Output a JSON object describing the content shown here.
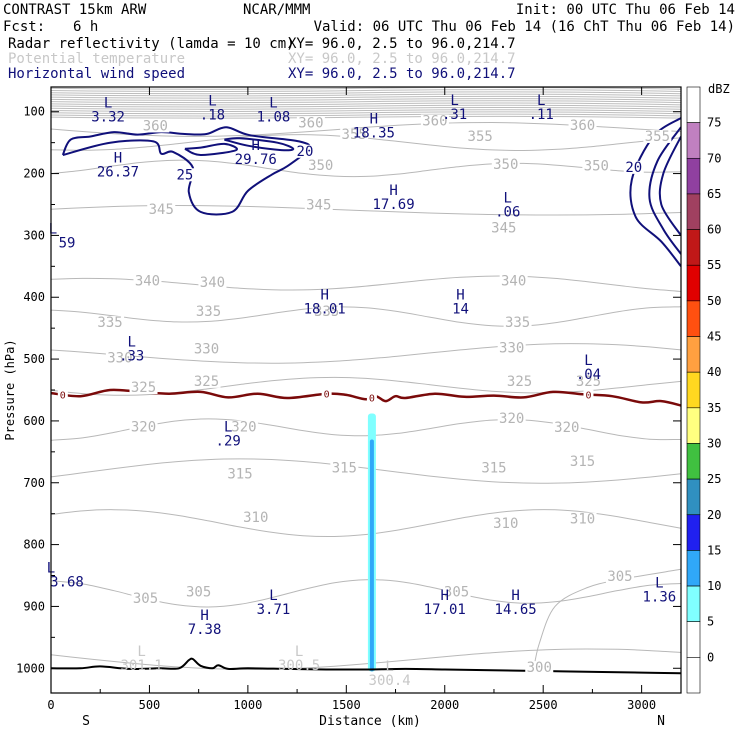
{
  "header": {
    "model": "CONTRAST 15km ARW",
    "org": "NCAR/MMM",
    "init": "Init: 00 UTC Thu 06 Feb 14",
    "fcst_label": "Fcst:",
    "fcst_value": "6 h",
    "valid": "Valid: 06 UTC Thu 06 Feb 14 (16 ChT Thu 06 Feb 14)"
  },
  "fields": [
    {
      "name": "Radar reflectivity (lamda = 10 cm)",
      "xy": "XY=  96.0,  2.5 to  96.0,214.7",
      "color": "#000000"
    },
    {
      "name": "Potential temperature",
      "xy": "XY=  96.0,  2.5 to  96.0,214.7",
      "color": "#c8c8c8"
    },
    {
      "name": "Horizontal wind speed",
      "xy": "XY=  96.0,  2.5 to  96.0,214.7",
      "color": "#10107a"
    }
  ],
  "colorbar": {
    "unit": "dBZ",
    "levels": [
      "75",
      "70",
      "65",
      "60",
      "55",
      "50",
      "45",
      "40",
      "35",
      "30",
      "25",
      "20",
      "15",
      "10",
      "5",
      "0"
    ],
    "colors": [
      "#ffffff",
      "#c080c0",
      "#9040a0",
      "#a04060",
      "#c01818",
      "#e00000",
      "#ff5010",
      "#ffa040",
      "#ffd820",
      "#ffff80",
      "#40c040",
      "#3090c0",
      "#2020f0",
      "#30a8f8",
      "#80ffff",
      "#ffffff",
      "#ffffff"
    ]
  },
  "chart_data": {
    "type": "cross-section",
    "xlabel": "Distance (km)",
    "ylabel": "Pressure (hPa)",
    "xlim": [
      0,
      3200
    ],
    "ylim": [
      1040,
      60
    ],
    "x_ticks": [
      "0",
      "500",
      "1000",
      "1500",
      "2000",
      "2500",
      "3000"
    ],
    "x_tick_values": [
      0,
      500,
      1000,
      1500,
      2000,
      2500,
      3000
    ],
    "y_ticks": [
      "100",
      "200",
      "300",
      "400",
      "500",
      "600",
      "700",
      "800",
      "900",
      "1000"
    ],
    "y_tick_values": [
      100,
      200,
      300,
      400,
      500,
      600,
      700,
      800,
      900,
      1000
    ],
    "direction_start": "S",
    "direction_end": "N",
    "theta_labels": [
      {
        "text": "360",
        "x": 530,
        "p": 127
      },
      {
        "text": "360",
        "x": 1320,
        "p": 122
      },
      {
        "text": "360",
        "x": 1950,
        "p": 119
      },
      {
        "text": "360",
        "x": 2700,
        "p": 126
      },
      {
        "text": "355",
        "x": 1540,
        "p": 141
      },
      {
        "text": "355",
        "x": 2180,
        "p": 144
      },
      {
        "text": "355",
        "x": 3080,
        "p": 144
      },
      {
        "text": "350",
        "x": 1370,
        "p": 191
      },
      {
        "text": "350",
        "x": 2310,
        "p": 189
      },
      {
        "text": "350",
        "x": 2770,
        "p": 192
      },
      {
        "text": "345",
        "x": 560,
        "p": 262
      },
      {
        "text": "345",
        "x": 2300,
        "p": 292
      },
      {
        "text": "345",
        "x": 1360,
        "p": 255
      },
      {
        "text": "340",
        "x": 490,
        "p": 378
      },
      {
        "text": "340",
        "x": 820,
        "p": 380
      },
      {
        "text": "340",
        "x": 2350,
        "p": 378
      },
      {
        "text": "335",
        "x": 300,
        "p": 445
      },
      {
        "text": "335",
        "x": 800,
        "p": 427
      },
      {
        "text": "335",
        "x": 1400,
        "p": 427
      },
      {
        "text": "335",
        "x": 2370,
        "p": 445
      },
      {
        "text": "330",
        "x": 350,
        "p": 502
      },
      {
        "text": "330",
        "x": 790,
        "p": 488
      },
      {
        "text": "330",
        "x": 2340,
        "p": 486
      },
      {
        "text": "325",
        "x": 470,
        "p": 550
      },
      {
        "text": "325",
        "x": 790,
        "p": 540
      },
      {
        "text": "325",
        "x": 2380,
        "p": 540
      },
      {
        "text": "325",
        "x": 2730,
        "p": 540
      },
      {
        "text": "320",
        "x": 470,
        "p": 614
      },
      {
        "text": "320",
        "x": 980,
        "p": 614
      },
      {
        "text": "320",
        "x": 2340,
        "p": 600
      },
      {
        "text": "320",
        "x": 2620,
        "p": 615
      },
      {
        "text": "315",
        "x": 960,
        "p": 690
      },
      {
        "text": "315",
        "x": 1490,
        "p": 680
      },
      {
        "text": "315",
        "x": 2250,
        "p": 680
      },
      {
        "text": "315",
        "x": 2700,
        "p": 670
      },
      {
        "text": "310",
        "x": 1040,
        "p": 760
      },
      {
        "text": "310",
        "x": 2310,
        "p": 770
      },
      {
        "text": "310",
        "x": 2700,
        "p": 763
      },
      {
        "text": "305",
        "x": 480,
        "p": 891
      },
      {
        "text": "305",
        "x": 750,
        "p": 881
      },
      {
        "text": "305",
        "x": 2060,
        "p": 881
      },
      {
        "text": "305",
        "x": 2890,
        "p": 856
      },
      {
        "text": "300",
        "x": 2480,
        "p": 1003
      }
    ],
    "extrema": [
      {
        "type": "L",
        "value": "3.32",
        "x": 290,
        "p": 96,
        "color": "#10107a"
      },
      {
        "type": "L",
        "value": ".18",
        "x": 820,
        "p": 93,
        "color": "#10107a"
      },
      {
        "type": "L",
        "value": "1.08",
        "x": 1130,
        "p": 96,
        "color": "#10107a"
      },
      {
        "type": "H",
        "value": "18.35",
        "x": 1640,
        "p": 122,
        "color": "#10107a"
      },
      {
        "type": "L",
        "value": ".31",
        "x": 2050,
        "p": 92,
        "color": "#10107a"
      },
      {
        "type": "L",
        "value": ".11",
        "x": 2490,
        "p": 92,
        "color": "#10107a"
      },
      {
        "type": "H",
        "value": "26.37",
        "x": 340,
        "p": 185,
        "color": "#10107a"
      },
      {
        "type": "H",
        "value": "29.76",
        "x": 1040,
        "p": 165,
        "color": "#10107a"
      },
      {
        "type": "H",
        "value": "17.69",
        "x": 1740,
        "p": 238,
        "color": "#10107a"
      },
      {
        "type": "L",
        "value": ".06",
        "x": 2320,
        "p": 250,
        "color": "#10107a"
      },
      {
        "type": "H",
        "value": "18.01",
        "x": 1390,
        "p": 407,
        "color": "#10107a"
      },
      {
        "type": "H",
        "value": "14",
        "x": 2080,
        "p": 407,
        "color": "#10107a"
      },
      {
        "type": "L",
        "value": ".33",
        "x": 410,
        "p": 483,
        "color": "#10107a"
      },
      {
        "type": "L",
        "value": ".04",
        "x": 2730,
        "p": 513,
        "color": "#10107a"
      },
      {
        "type": "L",
        "value": ".29",
        "x": 900,
        "p": 620,
        "color": "#10107a"
      },
      {
        "type": "L",
        "value": "3.68",
        "x": 0,
        "p": 848,
        "color": "#10107a"
      },
      {
        "type": "L",
        "value": "3.71",
        "x": 1130,
        "p": 893,
        "color": "#10107a"
      },
      {
        "type": "H",
        "value": "7.38",
        "x": 780,
        "p": 925,
        "color": "#10107a"
      },
      {
        "type": "H",
        "value": "17.01",
        "x": 2000,
        "p": 893,
        "color": "#10107a"
      },
      {
        "type": "H",
        "value": "14.65",
        "x": 2360,
        "p": 893,
        "color": "#10107a"
      },
      {
        "type": "L",
        "value": "1.36",
        "x": 3090,
        "p": 873,
        "color": "#10107a"
      },
      {
        "type": "L",
        "value": "301.1",
        "x": 460,
        "p": 983,
        "color": "#c8c8c8"
      },
      {
        "type": "L",
        "value": "300.5",
        "x": 1260,
        "p": 983,
        "color": "#c8c8c8"
      },
      {
        "type": "L",
        "value": "300.4",
        "x": 1720,
        "p": 1008,
        "color": "#c8c8c8"
      },
      {
        "type": "L",
        "value": "59",
        "x": 10,
        "p": 300,
        "color": "#10107a"
      }
    ],
    "wind_contour_labels": [
      {
        "text": "20",
        "x": 1290,
        "p": 168
      },
      {
        "text": "25",
        "x": 680,
        "p": 206
      },
      {
        "text": "20",
        "x": 2960,
        "p": 194
      }
    ],
    "wind_contours": [
      [
        [
          60,
          170
        ],
        [
          300,
          150
        ],
        [
          520,
          148
        ],
        [
          560,
          168
        ],
        [
          620,
          165
        ],
        [
          720,
          190
        ],
        [
          700,
          230
        ],
        [
          760,
          262
        ],
        [
          920,
          262
        ],
        [
          1000,
          228
        ],
        [
          1120,
          202
        ],
        [
          1200,
          188
        ],
        [
          1310,
          160
        ],
        [
          1260,
          148
        ],
        [
          1010,
          138
        ],
        [
          890,
          125
        ],
        [
          790,
          136
        ],
        [
          680,
          136
        ],
        [
          560,
          133
        ],
        [
          440,
          137
        ],
        [
          320,
          133
        ],
        [
          200,
          140
        ],
        [
          100,
          145
        ],
        [
          60,
          170
        ]
      ],
      [
        [
          880,
          145
        ],
        [
          1000,
          155
        ],
        [
          1170,
          162
        ],
        [
          1230,
          160
        ],
        [
          1150,
          150
        ],
        [
          960,
          143
        ],
        [
          880,
          145
        ]
      ],
      [
        [
          680,
          160
        ],
        [
          760,
          170
        ],
        [
          940,
          162
        ],
        [
          880,
          152
        ],
        [
          760,
          158
        ],
        [
          680,
          160
        ]
      ],
      [
        [
          3200,
          110
        ],
        [
          3060,
          140
        ],
        [
          2950,
          210
        ],
        [
          2970,
          270
        ],
        [
          3100,
          310
        ],
        [
          3200,
          350
        ]
      ],
      [
        [
          3200,
          125
        ],
        [
          3080,
          180
        ],
        [
          3040,
          240
        ],
        [
          3110,
          290
        ],
        [
          3200,
          330
        ]
      ],
      [
        [
          3200,
          140
        ],
        [
          3110,
          200
        ],
        [
          3100,
          250
        ],
        [
          3200,
          300
        ]
      ]
    ],
    "zero_line": {
      "label": "0",
      "x": [
        0,
        150,
        300,
        450,
        600,
        760,
        900,
        1050,
        1200,
        1400,
        1500,
        1600,
        1650,
        1700,
        1750,
        1800,
        1950,
        2100,
        2250,
        2400,
        2550,
        2700,
        2850,
        3000,
        3100,
        3200
      ],
      "p": [
        555,
        560,
        550,
        553,
        556,
        553,
        562,
        556,
        563,
        556,
        558,
        565,
        560,
        568,
        560,
        563,
        556,
        561,
        559,
        562,
        553,
        557,
        560,
        570,
        568,
        575
      ]
    },
    "surface_line": {
      "x": [
        0,
        150,
        250,
        400,
        550,
        650,
        700,
        720,
        760,
        820,
        850,
        900,
        1000,
        1200,
        1400,
        1600,
        1800,
        2000,
        2200,
        2400,
        2600,
        2800,
        3000,
        3200
      ],
      "p": [
        1000,
        1000,
        997,
        1001,
        1000,
        1000,
        987,
        985,
        996,
        1000,
        995,
        1001,
        1000,
        1001,
        1002,
        1002,
        1001,
        1002,
        1003,
        1004,
        1005,
        1006,
        1007,
        1008
      ]
    },
    "reflectivity_column": {
      "x": 1630,
      "p_top_outer": 588,
      "p_top_inner": 630,
      "p_bottom": 1005,
      "outer_color": "#80ffff",
      "inner_color": "#30a8f8"
    }
  }
}
